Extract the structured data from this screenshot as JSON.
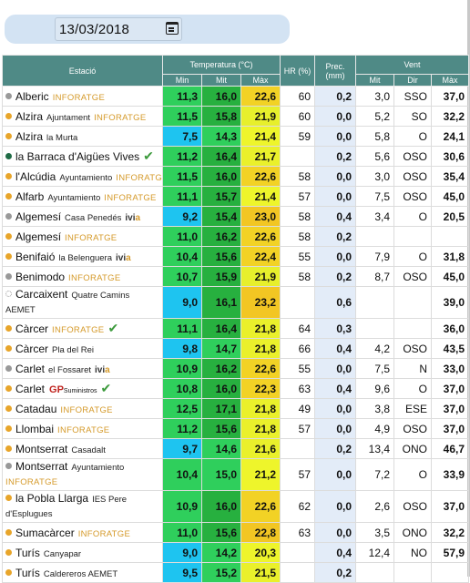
{
  "date": "13/03/2018",
  "headers": {
    "station": "Estació",
    "temperature": "Temperatura (°C)",
    "hr": "HR (%)",
    "prec": "Prec. (mm)",
    "wind": "Vent",
    "min": "Min",
    "mit": "Mit",
    "max": "Màx",
    "w_mit": "Mit",
    "w_dir": "Dir",
    "w_max": "Màx"
  },
  "colors": {
    "header": "#4f8a86",
    "dot_orange": "#e8a52a",
    "dot_gray": "#999999",
    "dot_darkgreen": "#1f6b45",
    "prec_bg": "#e3ecf8"
  },
  "rows": [
    {
      "name": "Alberic",
      "sub": "",
      "inf": "INFORATGE",
      "dot": "gray",
      "min": "11,3",
      "mit": "16,0",
      "max": "22,6",
      "hr": "60",
      "prec": "0,2",
      "wmit": "3,0",
      "wdir": "SSO",
      "wmax": "37,0",
      "cmin": "#2fcf5c",
      "cmit": "#27b03f",
      "cmax": "#f2d225"
    },
    {
      "name": "Alzira",
      "sub": "Ajuntament",
      "inf": "INFORATGE",
      "dot": "orange",
      "min": "11,5",
      "mit": "15,8",
      "max": "21,9",
      "hr": "60",
      "prec": "0,0",
      "wmit": "5,2",
      "wdir": "SO",
      "wmax": "32,2",
      "cmin": "#2fcf5c",
      "cmit": "#27b03f",
      "cmax": "#e7ef2c"
    },
    {
      "name": "Alzira",
      "sub": "la Murta",
      "inf": "",
      "dot": "orange",
      "min": "7,5",
      "mit": "14,3",
      "max": "21,4",
      "hr": "59",
      "prec": "0,0",
      "wmit": "5,8",
      "wdir": "O",
      "wmax": "24,1",
      "cmin": "#1ec4f0",
      "cmit": "#2fcf5c",
      "cmax": "#eef52b"
    },
    {
      "name": "la Barraca d'Aigües Vives",
      "sub": "",
      "inf": "",
      "dot": "darkgreen",
      "check": true,
      "min": "11,2",
      "mit": "16,4",
      "max": "21,7",
      "hr": "",
      "prec": "0,2",
      "wmit": "5,6",
      "wdir": "OSO",
      "wmax": "30,6",
      "cmin": "#2fcf5c",
      "cmit": "#27b03f",
      "cmax": "#eaf02b"
    },
    {
      "name": "l'Alcúdia",
      "sub": "Ayuntamiento",
      "inf": "INFORATGE",
      "dot": "orange",
      "min": "11,5",
      "mit": "16,0",
      "max": "22,6",
      "hr": "58",
      "prec": "0,0",
      "wmit": "3,0",
      "wdir": "OSO",
      "wmax": "35,4",
      "cmin": "#2fcf5c",
      "cmit": "#27b03f",
      "cmax": "#f2d225"
    },
    {
      "name": "Alfarb",
      "sub": "Ayuntamiento",
      "inf": "INFORATGE",
      "dot": "orange",
      "min": "11,1",
      "mit": "15,7",
      "max": "21,4",
      "hr": "57",
      "prec": "0,0",
      "wmit": "7,5",
      "wdir": "OSO",
      "wmax": "45,0",
      "cmin": "#2fcf5c",
      "cmit": "#27b03f",
      "cmax": "#eef52b"
    },
    {
      "name": "Algemesí",
      "sub": "Casa Penedés",
      "ivi": true,
      "inf": "",
      "dot": "gray",
      "min": "9,2",
      "mit": "15,4",
      "max": "23,0",
      "hr": "58",
      "prec": "0,4",
      "wmit": "3,4",
      "wdir": "O",
      "wmax": "20,5",
      "cmin": "#1ec4f0",
      "cmit": "#27b03f",
      "cmax": "#f2c623"
    },
    {
      "name": "Algemesí",
      "sub": "",
      "inf": "INFORATGE",
      "dot": "orange",
      "min": "11,0",
      "mit": "16,2",
      "max": "22,6",
      "hr": "58",
      "prec": "0,2",
      "wmit": "",
      "wdir": "",
      "wmax": "",
      "cmin": "#2fcf5c",
      "cmit": "#27b03f",
      "cmax": "#f2d225"
    },
    {
      "name": "Benifaió",
      "sub": "la Belenguera",
      "ivi": true,
      "inf": "",
      "dot": "orange",
      "min": "10,4",
      "mit": "15,6",
      "max": "22,4",
      "hr": "55",
      "prec": "0,0",
      "wmit": "7,9",
      "wdir": "O",
      "wmax": "31,8",
      "cmin": "#2fcf5c",
      "cmit": "#27b03f",
      "cmax": "#f2d225"
    },
    {
      "name": "Benimodo",
      "sub": "",
      "inf": "INFORATGE",
      "dot": "gray",
      "min": "10,7",
      "mit": "15,9",
      "max": "21,9",
      "hr": "58",
      "prec": "0,2",
      "wmit": "8,7",
      "wdir": "OSO",
      "wmax": "45,0",
      "cmin": "#2fcf5c",
      "cmit": "#27b03f",
      "cmax": "#e7ef2c"
    },
    {
      "name": "Carcaixent",
      "sub": "Quatre Camins",
      "line2": "AEMET",
      "tall": true,
      "inf": "",
      "dot": "empty",
      "min": "9,0",
      "mit": "16,1",
      "max": "23,2",
      "hr": "",
      "prec": "0,6",
      "wmit": "",
      "wdir": "",
      "wmax": "39,0",
      "cmin": "#1ec4f0",
      "cmit": "#27b03f",
      "cmax": "#f2c623"
    },
    {
      "name": "Càrcer",
      "sub": "",
      "inf": "INFORATGE",
      "check": true,
      "dot": "orange",
      "min": "11,1",
      "mit": "16,4",
      "max": "21,8",
      "hr": "64",
      "prec": "0,3",
      "wmit": "",
      "wdir": "",
      "wmax": "36,0",
      "cmin": "#2fcf5c",
      "cmit": "#27b03f",
      "cmax": "#eaf02b"
    },
    {
      "name": "Càrcer",
      "sub": "Pla del Rei",
      "inf": "",
      "dot": "orange",
      "min": "9,8",
      "mit": "14,7",
      "max": "21,8",
      "hr": "66",
      "prec": "0,4",
      "wmit": "4,2",
      "wdir": "OSO",
      "wmax": "43,5",
      "cmin": "#1ec4f0",
      "cmit": "#2fcf5c",
      "cmax": "#eaf02b"
    },
    {
      "name": "Carlet",
      "sub": "el Fossaret",
      "ivi": true,
      "inf": "",
      "dot": "gray",
      "min": "10,9",
      "mit": "16,2",
      "max": "22,6",
      "hr": "55",
      "prec": "0,0",
      "wmit": "7,5",
      "wdir": "N",
      "wmax": "33,0",
      "cmin": "#2fcf5c",
      "cmit": "#27b03f",
      "cmax": "#f2d225"
    },
    {
      "name": "Carlet",
      "sub": "",
      "gp": true,
      "check": true,
      "inf": "",
      "dot": "orange",
      "min": "10,8",
      "mit": "16,0",
      "max": "22,3",
      "hr": "63",
      "prec": "0,4",
      "wmit": "9,6",
      "wdir": "O",
      "wmax": "37,0",
      "cmin": "#2fcf5c",
      "cmit": "#27b03f",
      "cmax": "#f2d225"
    },
    {
      "name": "Catadau",
      "sub": "",
      "inf": "INFORATGE",
      "dot": "orange",
      "min": "12,5",
      "mit": "17,1",
      "max": "21,8",
      "hr": "49",
      "prec": "0,0",
      "wmit": "3,8",
      "wdir": "ESE",
      "wmax": "37,0",
      "cmin": "#2fcf5c",
      "cmit": "#27b03f",
      "cmax": "#eaf02b"
    },
    {
      "name": "Llombai",
      "sub": "",
      "inf": "INFORATGE",
      "dot": "orange",
      "min": "11,2",
      "mit": "15,6",
      "max": "21,8",
      "hr": "57",
      "prec": "0,0",
      "wmit": "4,9",
      "wdir": "OSO",
      "wmax": "37,0",
      "cmin": "#2fcf5c",
      "cmit": "#27b03f",
      "cmax": "#eaf02b"
    },
    {
      "name": "Montserrat",
      "sub": "Casadalt",
      "inf": "",
      "dot": "orange",
      "min": "9,7",
      "mit": "14,6",
      "max": "21,6",
      "hr": "",
      "prec": "0,2",
      "wmit": "13,4",
      "wdir": "ONO",
      "wmax": "46,7",
      "cmin": "#1ec4f0",
      "cmit": "#2fcf5c",
      "cmax": "#eaf02b"
    },
    {
      "name": "Montserrat",
      "sub": "Ayuntamiento",
      "line2": "INFORATGE",
      "line2inf": true,
      "tall": true,
      "inf": "",
      "dot": "gray",
      "min": "10,4",
      "mit": "15,0",
      "max": "21,2",
      "hr": "57",
      "prec": "0,0",
      "wmit": "7,2",
      "wdir": "O",
      "wmax": "33,9",
      "cmin": "#2fcf5c",
      "cmit": "#2fcf5c",
      "cmax": "#eef52b"
    },
    {
      "name": "la Pobla Llarga",
      "sub": "IES Pere",
      "line2": "d'Esplugues",
      "tall": true,
      "inf": "",
      "dot": "orange",
      "min": "10,9",
      "mit": "16,0",
      "max": "22,6",
      "hr": "62",
      "prec": "0,0",
      "wmit": "2,6",
      "wdir": "OSO",
      "wmax": "37,0",
      "cmin": "#2fcf5c",
      "cmit": "#27b03f",
      "cmax": "#f2d225"
    },
    {
      "name": "Sumacàrcer",
      "sub": "",
      "inf": "INFORATGE",
      "dot": "orange",
      "min": "11,0",
      "mit": "15,6",
      "max": "22,8",
      "hr": "63",
      "prec": "0,0",
      "wmit": "3,5",
      "wdir": "ONO",
      "wmax": "32,2",
      "cmin": "#2fcf5c",
      "cmit": "#27b03f",
      "cmax": "#f2c623"
    },
    {
      "name": "Turís",
      "sub": "Canyapar",
      "inf": "",
      "dot": "orange",
      "min": "9,0",
      "mit": "14,2",
      "max": "20,3",
      "hr": "",
      "prec": "0,4",
      "wmit": "12,4",
      "wdir": "NO",
      "wmax": "57,9",
      "cmin": "#1ec4f0",
      "cmit": "#2fcf5c",
      "cmax": "#eef52b"
    },
    {
      "name": "Turís",
      "sub": "Caldereros AEMET",
      "inf": "",
      "dot": "orange",
      "min": "9,5",
      "mit": "15,2",
      "max": "21,5",
      "hr": "",
      "prec": "0,2",
      "wmit": "",
      "wdir": "",
      "wmax": "",
      "cmin": "#1ec4f0",
      "cmit": "#2fcf5c",
      "cmax": "#eaf02b"
    }
  ]
}
